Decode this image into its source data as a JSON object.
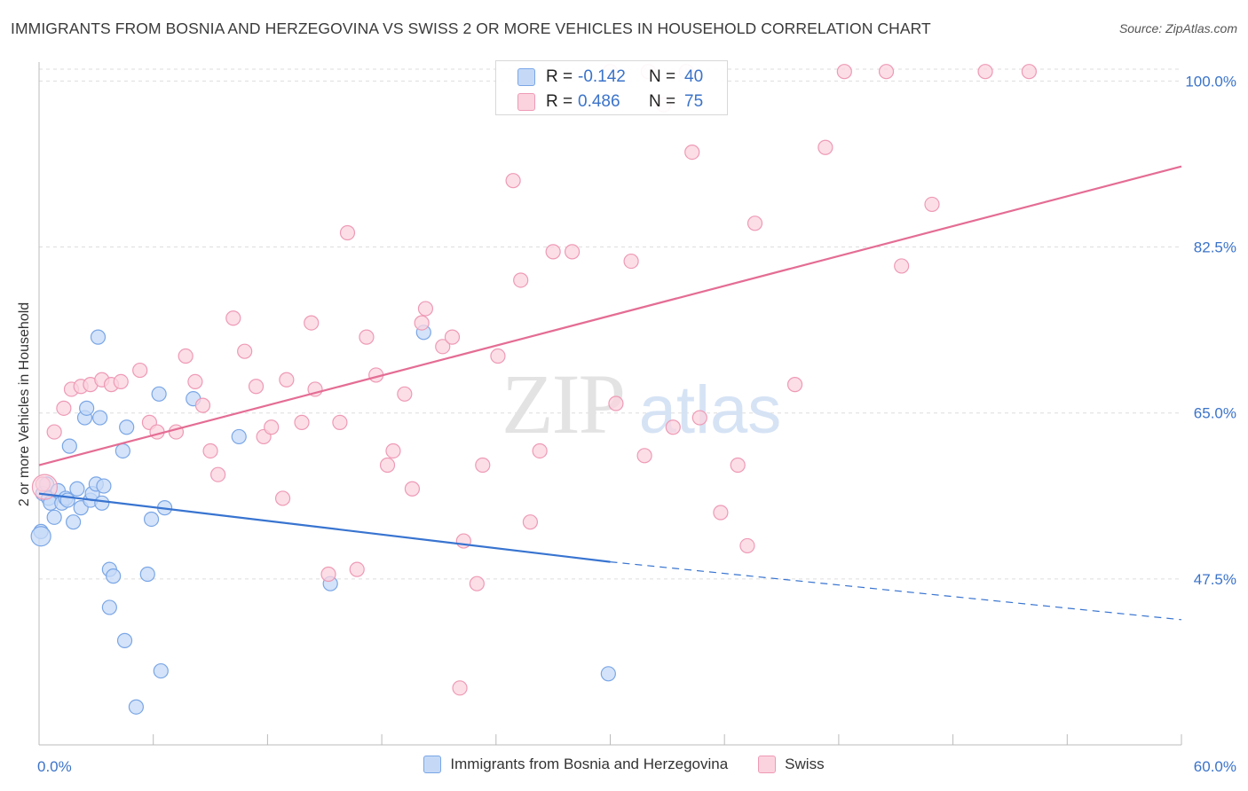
{
  "title": "IMMIGRANTS FROM BOSNIA AND HERZEGOVINA VS SWISS 2 OR MORE VEHICLES IN HOUSEHOLD CORRELATION CHART",
  "source": "Source: ZipAtlas.com",
  "watermark": {
    "zip": "ZIP",
    "atlas": "atlas"
  },
  "stats": [
    {
      "r_label": "R =",
      "r_value": "-0.142",
      "n_label": "N =",
      "n_value": "40",
      "color": "blue"
    },
    {
      "r_label": "R =",
      "r_value": "0.486",
      "n_label": "N =",
      "n_value": "75",
      "color": "pink"
    }
  ],
  "colors": {
    "blue_fill": "#c5d9f7",
    "blue_stroke": "#7aa6e6",
    "blue_line": "#3874d0",
    "pink_fill": "#fbd3df",
    "pink_stroke": "#ee9ab5",
    "pink_line": "#e46d94",
    "tick_label": "#3b73c9",
    "grid": "#dedede"
  },
  "chart_data": {
    "type": "scatter",
    "title": "IMMIGRANTS FROM BOSNIA AND HERZEGOVINA VS SWISS 2 OR MORE VEHICLES IN HOUSEHOLD CORRELATION CHART",
    "xlabel": "",
    "ylabel": "2 or more Vehicles in Household",
    "x_unit": "%",
    "y_unit": "%",
    "xlim": [
      0,
      60
    ],
    "ylim": [
      30,
      102
    ],
    "x_ticks": [
      0,
      60
    ],
    "x_tick_labels": [
      "0.0%",
      "60.0%"
    ],
    "y_ticks": [
      47.5,
      65.0,
      82.5,
      100.0
    ],
    "y_tick_labels": [
      "47.5%",
      "65.0%",
      "82.5%",
      "100.0%"
    ],
    "grid": true,
    "legend_position": "bottom-center",
    "series": [
      {
        "name": "Immigrants from Bosnia and Herzegovina",
        "color": "blue",
        "points": [
          [
            0.1,
            52.5
          ],
          [
            0.2,
            56.5
          ],
          [
            0.4,
            57.5
          ],
          [
            0.5,
            56.0
          ],
          [
            0.6,
            55.5
          ],
          [
            0.8,
            54.0
          ],
          [
            1.0,
            56.8
          ],
          [
            1.2,
            55.5
          ],
          [
            1.4,
            56.0
          ],
          [
            1.5,
            55.8
          ],
          [
            1.6,
            61.5
          ],
          [
            1.8,
            53.5
          ],
          [
            2.0,
            57.0
          ],
          [
            2.2,
            55.0
          ],
          [
            2.4,
            64.5
          ],
          [
            2.5,
            65.5
          ],
          [
            2.7,
            55.8
          ],
          [
            2.8,
            56.5
          ],
          [
            3.0,
            57.5
          ],
          [
            3.1,
            73.0
          ],
          [
            3.2,
            64.5
          ],
          [
            3.3,
            55.5
          ],
          [
            3.4,
            57.3
          ],
          [
            3.7,
            48.5
          ],
          [
            3.9,
            47.8
          ],
          [
            3.7,
            44.5
          ],
          [
            4.4,
            61.0
          ],
          [
            4.6,
            63.5
          ],
          [
            4.5,
            41.0
          ],
          [
            5.7,
            48.0
          ],
          [
            5.9,
            53.8
          ],
          [
            6.3,
            67.0
          ],
          [
            6.6,
            55.0
          ],
          [
            6.4,
            37.8
          ],
          [
            5.1,
            34.0
          ],
          [
            8.1,
            66.5
          ],
          [
            10.5,
            62.5
          ],
          [
            15.3,
            47.0
          ],
          [
            20.2,
            73.5
          ],
          [
            29.9,
            37.5
          ]
        ],
        "trend": {
          "x0": 0,
          "y0": 56.5,
          "x1": 30,
          "y1": 49.3,
          "dash_to_x": 60,
          "dash_to_y": 43.2
        }
      },
      {
        "name": "Swiss",
        "color": "pink",
        "points": [
          [
            0.2,
            57.5
          ],
          [
            0.8,
            63.0
          ],
          [
            1.3,
            65.5
          ],
          [
            1.7,
            67.5
          ],
          [
            2.2,
            67.8
          ],
          [
            2.7,
            68.0
          ],
          [
            3.3,
            68.5
          ],
          [
            3.8,
            68.0
          ],
          [
            4.3,
            68.3
          ],
          [
            5.3,
            69.5
          ],
          [
            5.8,
            64.0
          ],
          [
            6.2,
            63.0
          ],
          [
            7.2,
            63.0
          ],
          [
            7.7,
            71.0
          ],
          [
            8.2,
            68.3
          ],
          [
            8.6,
            65.8
          ],
          [
            9.0,
            61.0
          ],
          [
            9.4,
            58.5
          ],
          [
            10.2,
            75.0
          ],
          [
            10.8,
            71.5
          ],
          [
            11.4,
            67.8
          ],
          [
            11.8,
            62.5
          ],
          [
            12.2,
            63.5
          ],
          [
            12.8,
            56.0
          ],
          [
            13.0,
            68.5
          ],
          [
            13.8,
            64.0
          ],
          [
            14.3,
            74.5
          ],
          [
            14.5,
            67.5
          ],
          [
            15.2,
            48.0
          ],
          [
            15.8,
            64.0
          ],
          [
            16.2,
            84.0
          ],
          [
            16.7,
            48.5
          ],
          [
            17.2,
            73.0
          ],
          [
            17.7,
            69.0
          ],
          [
            18.3,
            59.5
          ],
          [
            18.6,
            61.0
          ],
          [
            19.2,
            67.0
          ],
          [
            19.6,
            57.0
          ],
          [
            20.1,
            74.5
          ],
          [
            20.3,
            76.0
          ],
          [
            21.2,
            72.0
          ],
          [
            21.7,
            73.0
          ],
          [
            22.3,
            51.5
          ],
          [
            23.0,
            47.0
          ],
          [
            23.3,
            59.5
          ],
          [
            24.1,
            71.0
          ],
          [
            24.9,
            89.5
          ],
          [
            25.3,
            79.0
          ],
          [
            25.8,
            53.5
          ],
          [
            26.3,
            61.0
          ],
          [
            27.0,
            82.0
          ],
          [
            28.0,
            82.0
          ],
          [
            22.1,
            36.0
          ],
          [
            30.3,
            66.0
          ],
          [
            31.1,
            81.0
          ],
          [
            31.8,
            60.5
          ],
          [
            32.0,
            101.0
          ],
          [
            32.8,
            97.5
          ],
          [
            33.3,
            63.5
          ],
          [
            34.3,
            92.5
          ],
          [
            34.7,
            64.5
          ],
          [
            35.8,
            54.5
          ],
          [
            36.7,
            59.5
          ],
          [
            37.2,
            51.0
          ],
          [
            37.6,
            85.0
          ],
          [
            39.7,
            68.0
          ],
          [
            41.3,
            93.0
          ],
          [
            42.3,
            101.0
          ],
          [
            44.5,
            101.0
          ],
          [
            45.3,
            80.5
          ],
          [
            46.9,
            87.0
          ],
          [
            49.7,
            101.0
          ],
          [
            52.0,
            101.0
          ],
          [
            30.0,
            101.0
          ],
          [
            34.0,
            101.0
          ]
        ],
        "trend": {
          "x0": 0,
          "y0": 59.5,
          "x1": 60,
          "y1": 91.0
        }
      }
    ]
  }
}
